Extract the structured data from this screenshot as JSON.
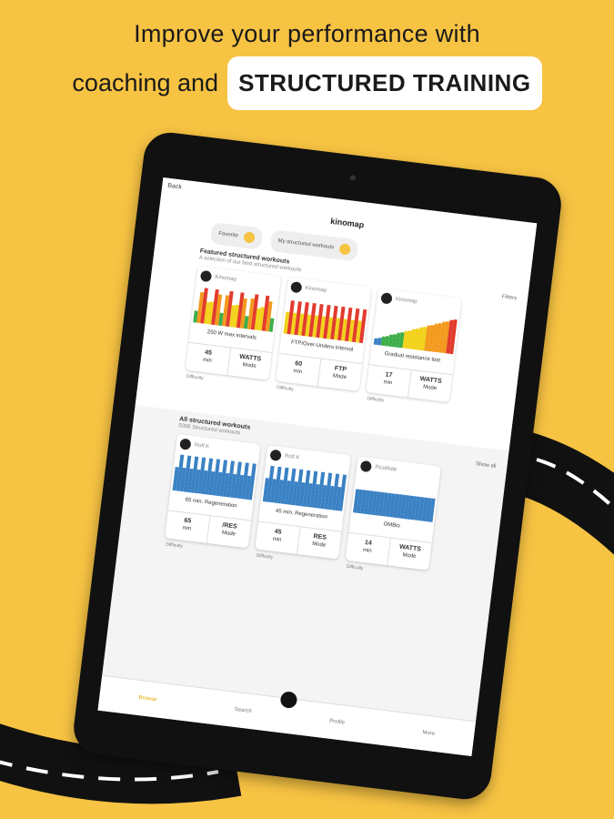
{
  "header": {
    "line1": "Improve your performance with",
    "line2": "coaching and",
    "highlight": "STRUCTURED TRAINING"
  },
  "app": {
    "back": "Back",
    "brand": "kinomap",
    "tabs": [
      "Favorite",
      "My structured workouts"
    ],
    "featured": {
      "title": "Featured structured workouts",
      "subtitle": "A selection of our best structured workouts",
      "filters": "Filters",
      "cards": [
        {
          "provider": "Kinomap",
          "name": "250 W max intervals",
          "duration": "45",
          "unit": "min",
          "mode": "WATTS",
          "mode_label": "Mode",
          "difficulty": "Difficulty"
        },
        {
          "provider": "Kinomap",
          "name": "FTP/Over-Unders Interval",
          "duration": "60",
          "unit": "min",
          "mode": "FTP",
          "mode_label": "Mode",
          "difficulty": "Difficulty"
        },
        {
          "provider": "Kinomap",
          "name": "Gradual resistance test",
          "duration": "17",
          "unit": "min",
          "mode": "WATTS",
          "mode_label": "Mode",
          "difficulty": "Difficulty"
        }
      ]
    },
    "all": {
      "title": "All structured workouts",
      "subtitle": "5008 Structured workouts",
      "show_all": "Show all",
      "cards": [
        {
          "provider": "Rolf K",
          "name": "65 min. Regeneration",
          "duration": "65",
          "unit": "min",
          "mode": "/RES",
          "mode_label": "Mode",
          "difficulty": "Difficulty"
        },
        {
          "provider": "Rolf K",
          "name": "45 min. Regeneration",
          "duration": "45",
          "unit": "min",
          "mode": "RES",
          "mode_label": "Mode",
          "difficulty": "Difficulty"
        },
        {
          "provider": "PicoRide",
          "name": "OMBio",
          "duration": "14",
          "unit": "min",
          "mode": "WATTS",
          "mode_label": "Mode",
          "difficulty": "Difficulty"
        }
      ]
    },
    "nav": [
      "Browse",
      "Search",
      "Profile",
      "More"
    ]
  }
}
